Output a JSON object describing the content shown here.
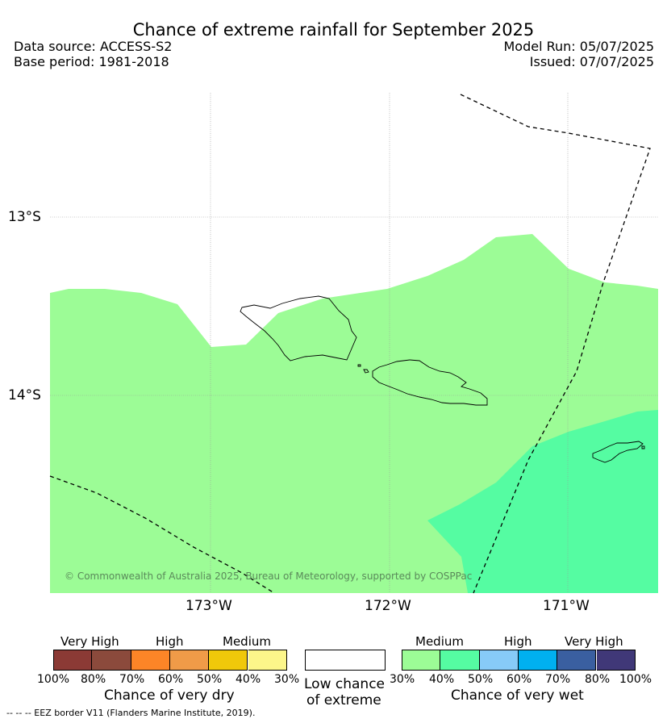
{
  "header": {
    "title": "Chance of extreme rainfall for September 2025",
    "data_source": "Data source: ACCESS-S2",
    "base_period": "Base period: 1981-2018",
    "model_run": "Model Run: 05/07/2025",
    "issued": "Issued: 07/07/2025"
  },
  "map": {
    "lon_labels": [
      "173°W",
      "172°W",
      "171°W"
    ],
    "lat_labels": [
      "13°S",
      "14°S"
    ],
    "copyright": "© Commonwealth of Australia 2025, Bureau of Meteorology, supported by COSPPac",
    "colors": {
      "medium_wet": "#9cfc96",
      "high_wet_40_50": "#55fca2",
      "eez_line": "#000000"
    }
  },
  "legend": {
    "dry": {
      "headers": [
        "Very High",
        "High",
        "Medium"
      ],
      "ticks": [
        "100%",
        "80%",
        "70%",
        "60%",
        "50%",
        "40%",
        "30%"
      ],
      "colors": [
        "#8b3a35",
        "#8b4a3c",
        "#fc8527",
        "#f09b48",
        "#f0c80a",
        "#fcf68a"
      ],
      "title": "Chance of very dry"
    },
    "low": {
      "title_line1": "Low chance",
      "title_line2": "of extreme",
      "color": "#ffffff"
    },
    "wet": {
      "headers": [
        "Medium",
        "High",
        "Very High"
      ],
      "ticks": [
        "30%",
        "40%",
        "50%",
        "60%",
        "70%",
        "80%",
        "100%"
      ],
      "colors": [
        "#9cfc96",
        "#55fca2",
        "#87cbf8",
        "#00b0f0",
        "#3a5fa0",
        "#403878"
      ],
      "title": "Chance of very wet"
    }
  },
  "footer": {
    "eez_note": "--  --  -- EEZ border V11 (Flanders Marine Institute, 2019)."
  }
}
